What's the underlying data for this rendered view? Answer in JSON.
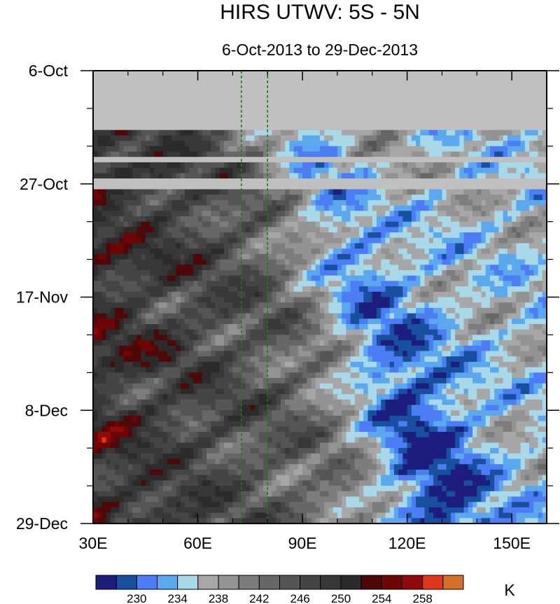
{
  "chart_data": {
    "type": "heatmap",
    "title": "HIRS UTWV: 5S - 5N",
    "subtitle": "6-Oct-2013 to 29-Dec-2013",
    "xaxis": {
      "range": [
        30,
        160
      ],
      "ticks": [
        30,
        60,
        90,
        120,
        150
      ],
      "tick_labels": [
        "30E",
        "60E",
        "90E",
        "120E",
        "150E"
      ]
    },
    "yaxis": {
      "range": [
        "6-Oct-2013",
        "29-Dec-2013"
      ],
      "ticks": [
        "6-Oct",
        "27-Oct",
        "17-Nov",
        "8-Dec",
        "29-Dec"
      ],
      "direction": "time increases downward"
    },
    "missing_data": {
      "color": "#c0c0c0",
      "periods": [
        [
          "6-Oct-2013",
          "17-Oct-2013"
        ],
        [
          "22-Oct-2013",
          "23-Oct-2013"
        ],
        [
          "26-Oct-2013",
          "28-Oct-2013"
        ]
      ]
    },
    "reference_lines": {
      "longitudes": [
        72.5,
        80
      ],
      "color": "#1a7f1a",
      "style": "dashed"
    },
    "colorbar": {
      "unit": "K",
      "labels": [
        "230",
        "234",
        "238",
        "242",
        "246",
        "250",
        "254",
        "258"
      ],
      "levels": [
        228,
        230,
        232,
        234,
        236,
        238,
        240,
        242,
        244,
        246,
        248,
        250,
        252,
        254,
        256,
        258,
        260
      ],
      "colors": [
        "#1d1d7e",
        "#184f9e",
        "#4d7df5",
        "#5ba8ef",
        "#a9d8e8",
        "#a7a7a7",
        "#939393",
        "#7d7d7d",
        "#676767",
        "#555555",
        "#454545",
        "#383838",
        "#2b2b2b",
        "#4e0808",
        "#6e0606",
        "#900a0a",
        "#e0361b",
        "#d4702a"
      ]
    }
  }
}
